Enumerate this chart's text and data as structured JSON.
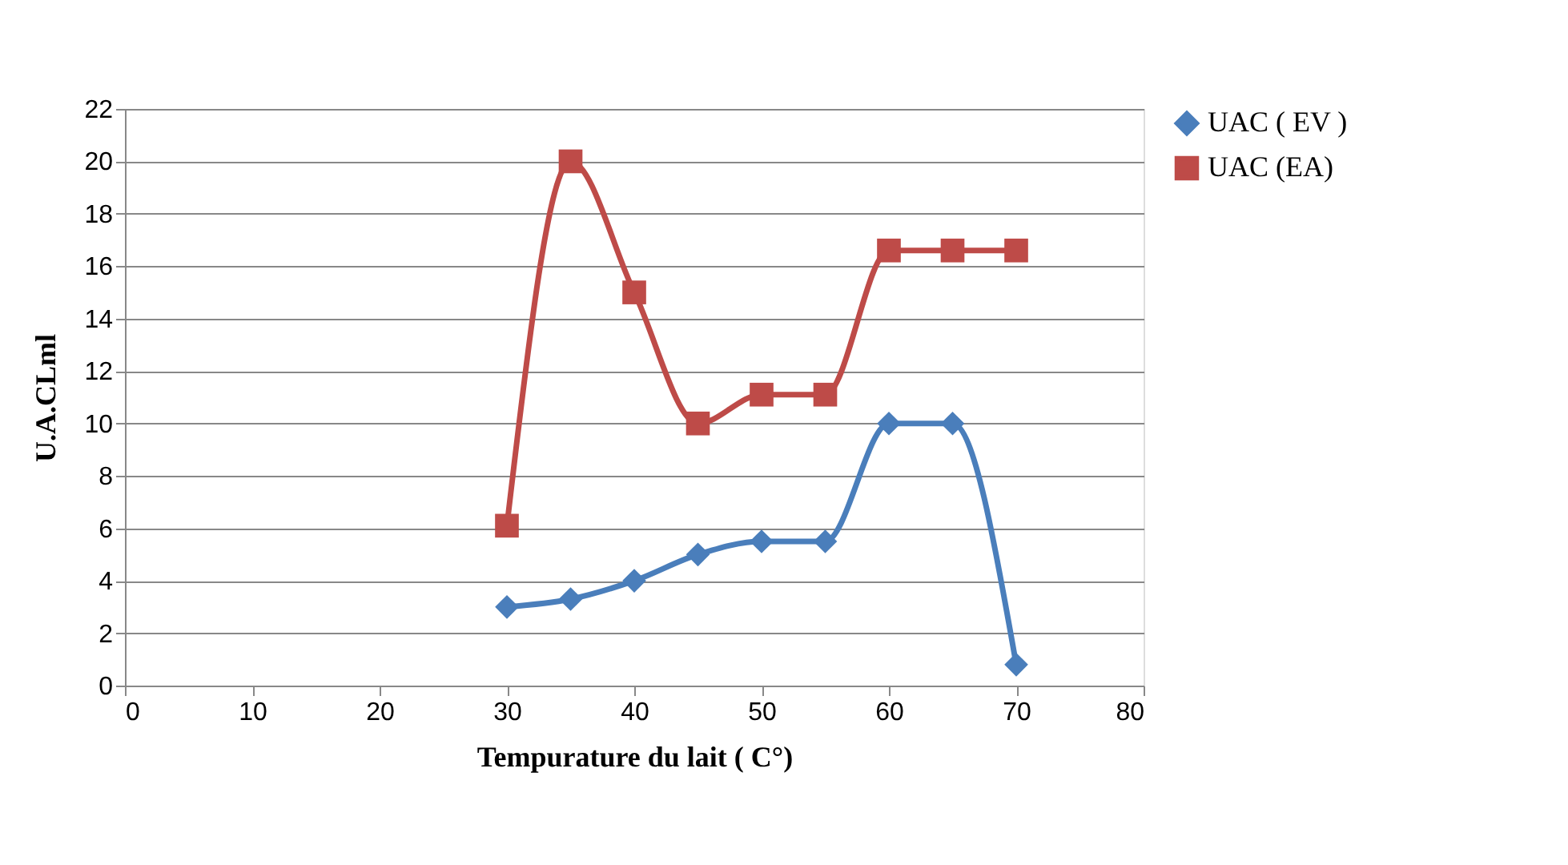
{
  "chart_data": {
    "type": "line",
    "xlabel": "Tempurature du lait ( C°)",
    "ylabel": "U.A.CLml",
    "x": [
      30,
      35,
      40,
      45,
      50,
      55,
      60,
      65,
      70
    ],
    "series": [
      {
        "name": "UAC ( EV )",
        "color": "#4a7ebb",
        "marker": "diamond",
        "values": [
          3,
          3.3,
          4,
          5,
          5.5,
          5.5,
          10,
          10,
          0.8
        ]
      },
      {
        "name": "UAC (EA)",
        "color": "#be4b48",
        "marker": "square",
        "values": [
          6.1,
          20,
          15,
          10,
          11.1,
          11.1,
          16.6,
          16.6,
          16.6
        ]
      }
    ],
    "xlim": [
      0,
      80
    ],
    "xticks": [
      0,
      10,
      20,
      30,
      40,
      50,
      60,
      70,
      80
    ],
    "ylim": [
      0,
      22
    ],
    "yticks": [
      0,
      2,
      4,
      6,
      8,
      10,
      12,
      14,
      16,
      18,
      20,
      22
    ],
    "grid": "y",
    "legend": "right",
    "line_style": "solid"
  }
}
